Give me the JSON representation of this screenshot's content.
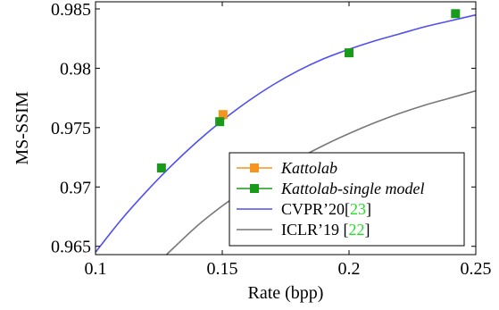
{
  "chart_data": {
    "type": "line",
    "xlabel": "Rate (bpp)",
    "ylabel": "MS-SSIM",
    "xlim": [
      0.1,
      0.25
    ],
    "ylim": [
      0.9643,
      0.9856
    ],
    "xticks": [
      0.1,
      0.15,
      0.2,
      0.25
    ],
    "xtick_labels": [
      "0.1",
      "0.15",
      "0.2",
      "0.25"
    ],
    "yticks": [
      0.965,
      0.97,
      0.975,
      0.98,
      0.985
    ],
    "ytick_labels": [
      "0.965",
      "0.97",
      "0.975",
      "0.98",
      "0.985"
    ],
    "grid": false,
    "legend_position": "bottom-right",
    "series": [
      {
        "name": "Kattolab",
        "name_italic": true,
        "marker": "square",
        "color": "#f7941d",
        "x": [
          0.1503
        ],
        "y": [
          0.9761
        ]
      },
      {
        "name": "Kattolab-single model",
        "name_italic": true,
        "marker": "square",
        "color": "#1a9a1a",
        "x": [
          0.126,
          0.149,
          0.2,
          0.242
        ],
        "y": [
          0.9716,
          0.9755,
          0.9813,
          0.9846
        ]
      },
      {
        "name": "CVPR’20",
        "ref": "23",
        "marker": "none",
        "color": "#4f4ff0",
        "x": [
          0.1,
          0.11,
          0.12,
          0.13,
          0.14,
          0.15,
          0.16,
          0.17,
          0.18,
          0.19,
          0.2,
          0.21,
          0.22,
          0.23,
          0.24,
          0.25
        ],
        "y": [
          0.9645,
          0.9672,
          0.9696,
          0.9718,
          0.9738,
          0.9756,
          0.9772,
          0.9786,
          0.9798,
          0.9808,
          0.9816,
          0.9823,
          0.9829,
          0.9835,
          0.984,
          0.9845
        ]
      },
      {
        "name": "ICLR’19 ",
        "ref": "22",
        "marker": "none",
        "color": "#777777",
        "x": [
          0.128,
          0.14,
          0.15,
          0.16,
          0.17,
          0.18,
          0.19,
          0.2,
          0.21,
          0.22,
          0.23,
          0.24,
          0.25
        ],
        "y": [
          0.9643,
          0.9667,
          0.9684,
          0.9699,
          0.9712,
          0.9724,
          0.9735,
          0.9745,
          0.9754,
          0.9762,
          0.9769,
          0.9775,
          0.9781
        ]
      }
    ]
  },
  "legend": {
    "open_bracket": "[",
    "close_bracket": "]",
    "ref_color": "#22dd22"
  }
}
